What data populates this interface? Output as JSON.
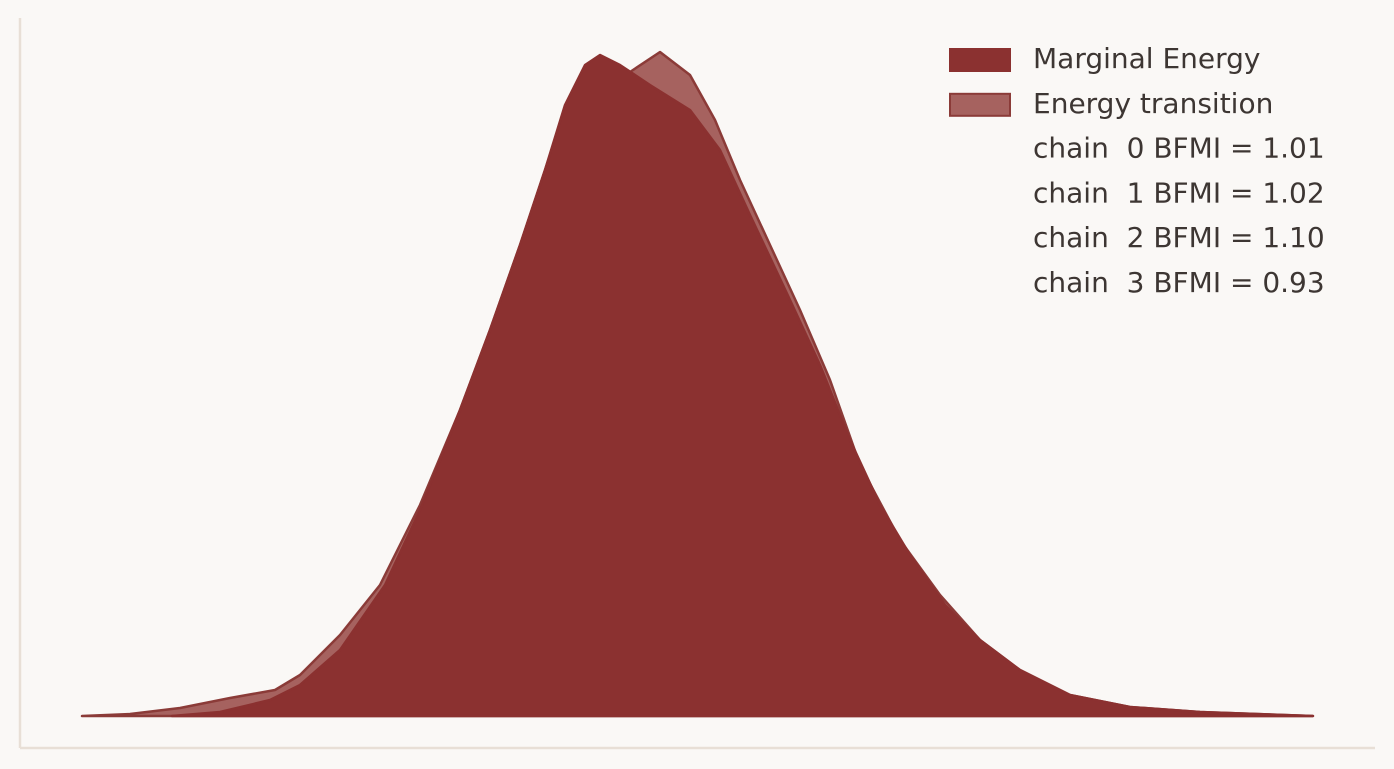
{
  "chart_data": {
    "type": "area",
    "xlim": [
      0,
      1355
    ],
    "ylim": [
      -32,
      698
    ],
    "axis_color": "#e8dfd6",
    "series": [
      {
        "name": "Energy transition",
        "color": "#a6625f",
        "edge_color": "#8b3b38",
        "x": [
          62,
          110,
          160,
          210,
          255,
          280,
          320,
          360,
          400,
          440,
          470,
          500,
          525,
          545,
          570,
          610,
          640,
          670,
          695,
          720,
          750,
          780,
          810,
          840,
          880,
          920,
          960,
          1000,
          1050,
          1110,
          1180,
          1293
        ],
        "values": [
          0,
          2,
          8,
          18,
          26,
          41,
          81,
          131,
          211,
          306,
          386,
          471,
          546,
          606,
          646,
          644,
          664,
          641,
          596,
          536,
          471,
          406,
          336,
          251,
          176,
          121,
          76,
          46,
          21,
          9,
          4,
          0
        ]
      },
      {
        "name": "Marginal Energy",
        "color": "#8b3130",
        "edge_color": "#8b3130",
        "x": [
          152,
          200,
          250,
          280,
          320,
          365,
          400,
          440,
          470,
          500,
          525,
          545,
          565,
          580,
          600,
          630,
          670,
          700,
          730,
          770,
          800,
          830,
          860,
          890,
          925,
          960,
          1000,
          1050,
          1110,
          1180,
          1293
        ],
        "values": [
          0,
          4,
          16,
          31,
          66,
          131,
          206,
          306,
          386,
          471,
          546,
          611,
          651,
          661,
          651,
          631,
          606,
          566,
          501,
          416,
          351,
          276,
          211,
          161,
          111,
          76,
          46,
          21,
          9,
          4,
          0
        ]
      }
    ],
    "legend_order": [
      1,
      0
    ],
    "legend_notes": [
      "chain  0 BFMI = 1.01",
      "chain  1 BFMI = 1.02",
      "chain  2 BFMI = 1.10",
      "chain  3 BFMI = 0.93"
    ]
  }
}
